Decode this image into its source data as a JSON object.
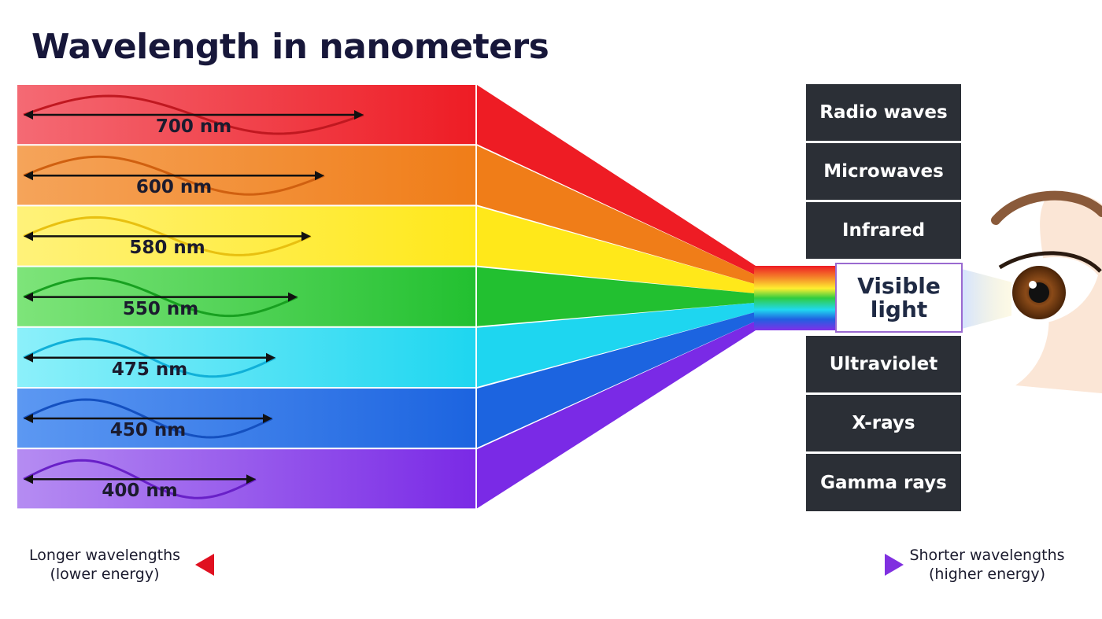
{
  "header": {
    "title": "Wavelength in nanometers"
  },
  "bands": [
    {
      "label": "700 nm"
    },
    {
      "label": "600 nm"
    },
    {
      "label": "580 nm"
    },
    {
      "label": "550 nm"
    },
    {
      "label": "475 nm"
    },
    {
      "label": "450 nm"
    },
    {
      "label": "400 nm"
    }
  ],
  "spectrum": [
    {
      "label": "Radio waves"
    },
    {
      "label": "Microwaves"
    },
    {
      "label": "Infrared"
    },
    {
      "label": "Visible light"
    },
    {
      "label": "Ultraviolet"
    },
    {
      "label": "X-rays"
    },
    {
      "label": "Gamma rays"
    }
  ],
  "scale": {
    "left": {
      "line1": "Longer wavelengths",
      "line2": "(lower energy)"
    },
    "right": {
      "line1": "Shorter wavelengths",
      "line2": "(higher energy)"
    }
  }
}
